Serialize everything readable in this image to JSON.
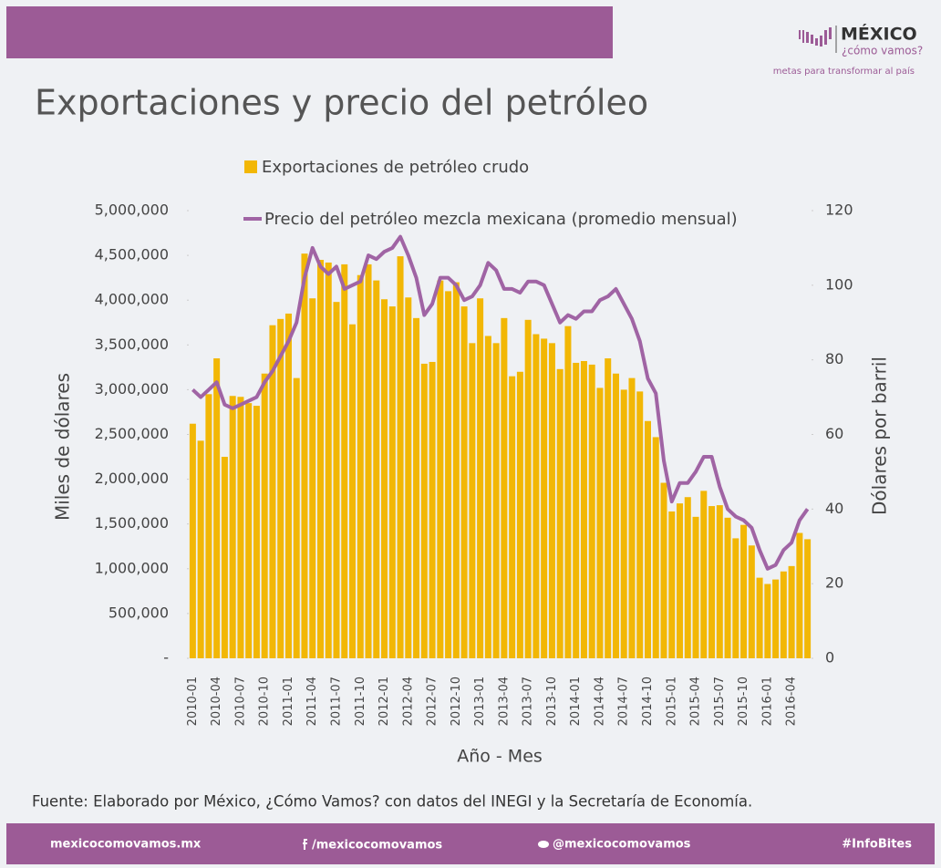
{
  "header": {
    "logo_title": "MÉXICO",
    "logo_subtitle": "¿cómo vamos?",
    "logo_tagline": "metas para transformar al país"
  },
  "chart_data": {
    "type": "bar",
    "title": "Exportaciones y precio del petróleo",
    "x_label": "Año - Mes",
    "y_label": "Miles de dólares",
    "y2_label": "Dólares por barril",
    "categories": [
      "2010-01",
      null,
      null,
      "2010-04",
      null,
      null,
      "2010-07",
      null,
      null,
      "2010-10",
      null,
      null,
      "2011-01",
      null,
      null,
      "2011-04",
      null,
      null,
      "2011-07",
      null,
      null,
      "2011-10",
      null,
      null,
      "2012-01",
      null,
      null,
      "2012-04",
      null,
      null,
      "2012-07",
      null,
      null,
      "2012-10",
      null,
      null,
      "2013-01",
      null,
      null,
      "2013-04",
      null,
      null,
      "2013-07",
      null,
      null,
      "2013-10",
      null,
      null,
      "2014-01",
      null,
      null,
      "2014-04",
      null,
      null,
      "2014-07",
      null,
      null,
      "2014-10",
      null,
      null,
      "2015-01",
      null,
      null,
      "2015-04",
      null,
      null,
      "2015-07",
      null,
      null,
      "2015-10",
      null,
      null,
      "2016-01",
      null,
      null,
      "2016-04",
      null,
      null
    ],
    "series": [
      {
        "name": "Exportaciones de petróleo crudo",
        "type": "bar",
        "color": "#f2b705",
        "values": [
          2620000,
          2430000,
          2950000,
          3350000,
          2250000,
          2930000,
          2920000,
          2850000,
          2820000,
          3180000,
          3720000,
          3790000,
          3850000,
          3130000,
          4520000,
          4020000,
          4450000,
          4420000,
          3980000,
          4400000,
          3730000,
          4280000,
          4400000,
          4220000,
          4010000,
          3930000,
          4490000,
          4030000,
          3800000,
          3290000,
          3310000,
          4220000,
          4100000,
          4200000,
          3930000,
          3520000,
          4020000,
          3600000,
          3520000,
          3800000,
          3150000,
          3200000,
          3780000,
          3620000,
          3570000,
          3520000,
          3230000,
          3710000,
          3300000,
          3320000,
          3280000,
          3020000,
          3350000,
          3180000,
          3000000,
          3130000,
          2980000,
          2650000,
          2470000,
          1960000,
          1640000,
          1730000,
          1800000,
          1580000,
          1870000,
          1700000,
          1710000,
          1570000,
          1340000,
          1490000,
          1260000,
          900000,
          830000,
          880000,
          970000,
          1030000,
          1400000,
          1330000
        ]
      },
      {
        "name": "Precio del petróleo mezcla mexicana (promedio mensual)",
        "type": "line",
        "color": "#a064a4",
        "axis": "y2",
        "values": [
          72,
          70,
          72,
          74,
          68,
          67,
          68,
          69,
          70,
          74,
          77,
          81,
          85,
          90,
          102,
          110,
          105,
          103,
          105,
          99,
          100,
          101,
          108,
          107,
          109,
          110,
          113,
          108,
          102,
          92,
          95,
          102,
          102,
          100,
          96,
          97,
          100,
          106,
          104,
          99,
          99,
          98,
          101,
          101,
          100,
          95,
          90,
          92,
          91,
          93,
          93,
          96,
          97,
          99,
          95,
          91,
          85,
          75,
          71,
          53,
          42,
          47,
          47,
          50,
          54,
          54,
          46,
          40,
          38,
          37,
          35,
          29,
          24,
          25,
          29,
          31,
          37,
          40
        ]
      }
    ],
    "ylim": [
      0,
      5000000
    ],
    "yticks": [
      {
        "value": 0,
        "label": "-"
      },
      {
        "value": 500000,
        "label": "500,000"
      },
      {
        "value": 1000000,
        "label": "1,000,000"
      },
      {
        "value": 1500000,
        "label": "1,500,000"
      },
      {
        "value": 2000000,
        "label": "2,000,000"
      },
      {
        "value": 2500000,
        "label": "2,500,000"
      },
      {
        "value": 3000000,
        "label": "3,000,000"
      },
      {
        "value": 3500000,
        "label": "3,500,000"
      },
      {
        "value": 4000000,
        "label": "4,000,000"
      },
      {
        "value": 4500000,
        "label": "4,500,000"
      },
      {
        "value": 5000000,
        "label": "5,000,000"
      }
    ],
    "y2lim": [
      0,
      120
    ],
    "y2ticks": [
      0,
      20,
      40,
      60,
      80,
      100,
      120
    ]
  },
  "source": "Fuente: Elaborado por México, ¿Cómo Vamos? con datos del INEGI y  la Secretaría de Economía.",
  "footer": {
    "website": "mexicocomovamos.mx",
    "facebook": "/mexicocomovamos",
    "twitter": "@mexicocomovamos",
    "hashtag": "#InfoBites"
  }
}
